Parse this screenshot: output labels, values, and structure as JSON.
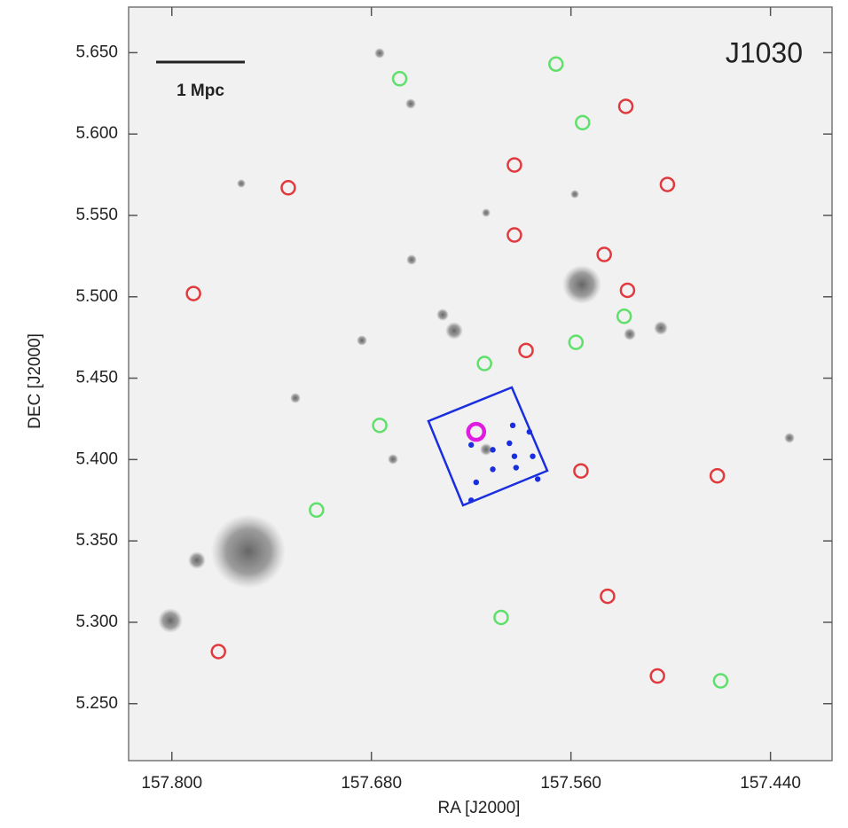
{
  "chart_data": {
    "type": "scatter",
    "title": "J1030",
    "scale_label": "1 Mpc",
    "x_label": "RA [J2000]",
    "y_label": "DEC [J2000]",
    "xlim": [
      157.826,
      157.403
    ],
    "ylim": [
      5.215,
      5.678
    ],
    "xticks": [
      {
        "value": 157.8,
        "label": "157.800"
      },
      {
        "value": 157.68,
        "label": "157.680"
      },
      {
        "value": 157.56,
        "label": "157.560"
      },
      {
        "value": 157.44,
        "label": "157.440"
      }
    ],
    "yticks": [
      {
        "value": 5.65,
        "label": "5.650"
      },
      {
        "value": 5.6,
        "label": "5.600"
      },
      {
        "value": 5.55,
        "label": "5.550"
      },
      {
        "value": 5.5,
        "label": "5.500"
      },
      {
        "value": 5.45,
        "label": "5.450"
      },
      {
        "value": 5.4,
        "label": "5.400"
      },
      {
        "value": 5.35,
        "label": "5.350"
      },
      {
        "value": 5.3,
        "label": "5.300"
      },
      {
        "value": 5.25,
        "label": "5.250"
      }
    ],
    "series": [
      {
        "color": "#e03a3e",
        "marker": "ring",
        "x": [
          157.73,
          157.787,
          157.594,
          157.527,
          157.502,
          157.594,
          157.54,
          157.526,
          157.587,
          157.554,
          157.472,
          157.538,
          157.772,
          157.508
        ],
        "values": [
          5.567,
          5.502,
          5.581,
          5.617,
          5.569,
          5.538,
          5.526,
          5.504,
          5.467,
          5.393,
          5.39,
          5.316,
          5.282,
          5.267
        ]
      },
      {
        "color": "#5fe06a",
        "marker": "ring",
        "x": [
          157.663,
          157.569,
          157.553,
          157.528,
          157.557,
          157.612,
          157.675,
          157.713,
          157.602,
          157.47
        ],
        "values": [
          5.634,
          5.643,
          5.607,
          5.488,
          5.472,
          5.459,
          5.421,
          5.369,
          5.303,
          5.264
        ]
      },
      {
        "color": "#1a2ee0",
        "marker": "dot",
        "x": [
          157.62,
          157.607,
          157.597,
          157.595,
          157.585,
          157.594,
          157.583,
          157.607,
          157.593,
          157.617,
          157.58,
          157.62
        ],
        "values": [
          5.409,
          5.406,
          5.41,
          5.421,
          5.417,
          5.402,
          5.402,
          5.394,
          5.395,
          5.386,
          5.388,
          5.375
        ]
      },
      {
        "color": "#e01ce0",
        "marker": "big-ring",
        "x": [
          157.617
        ],
        "values": [
          5.417
        ]
      }
    ]
  }
}
